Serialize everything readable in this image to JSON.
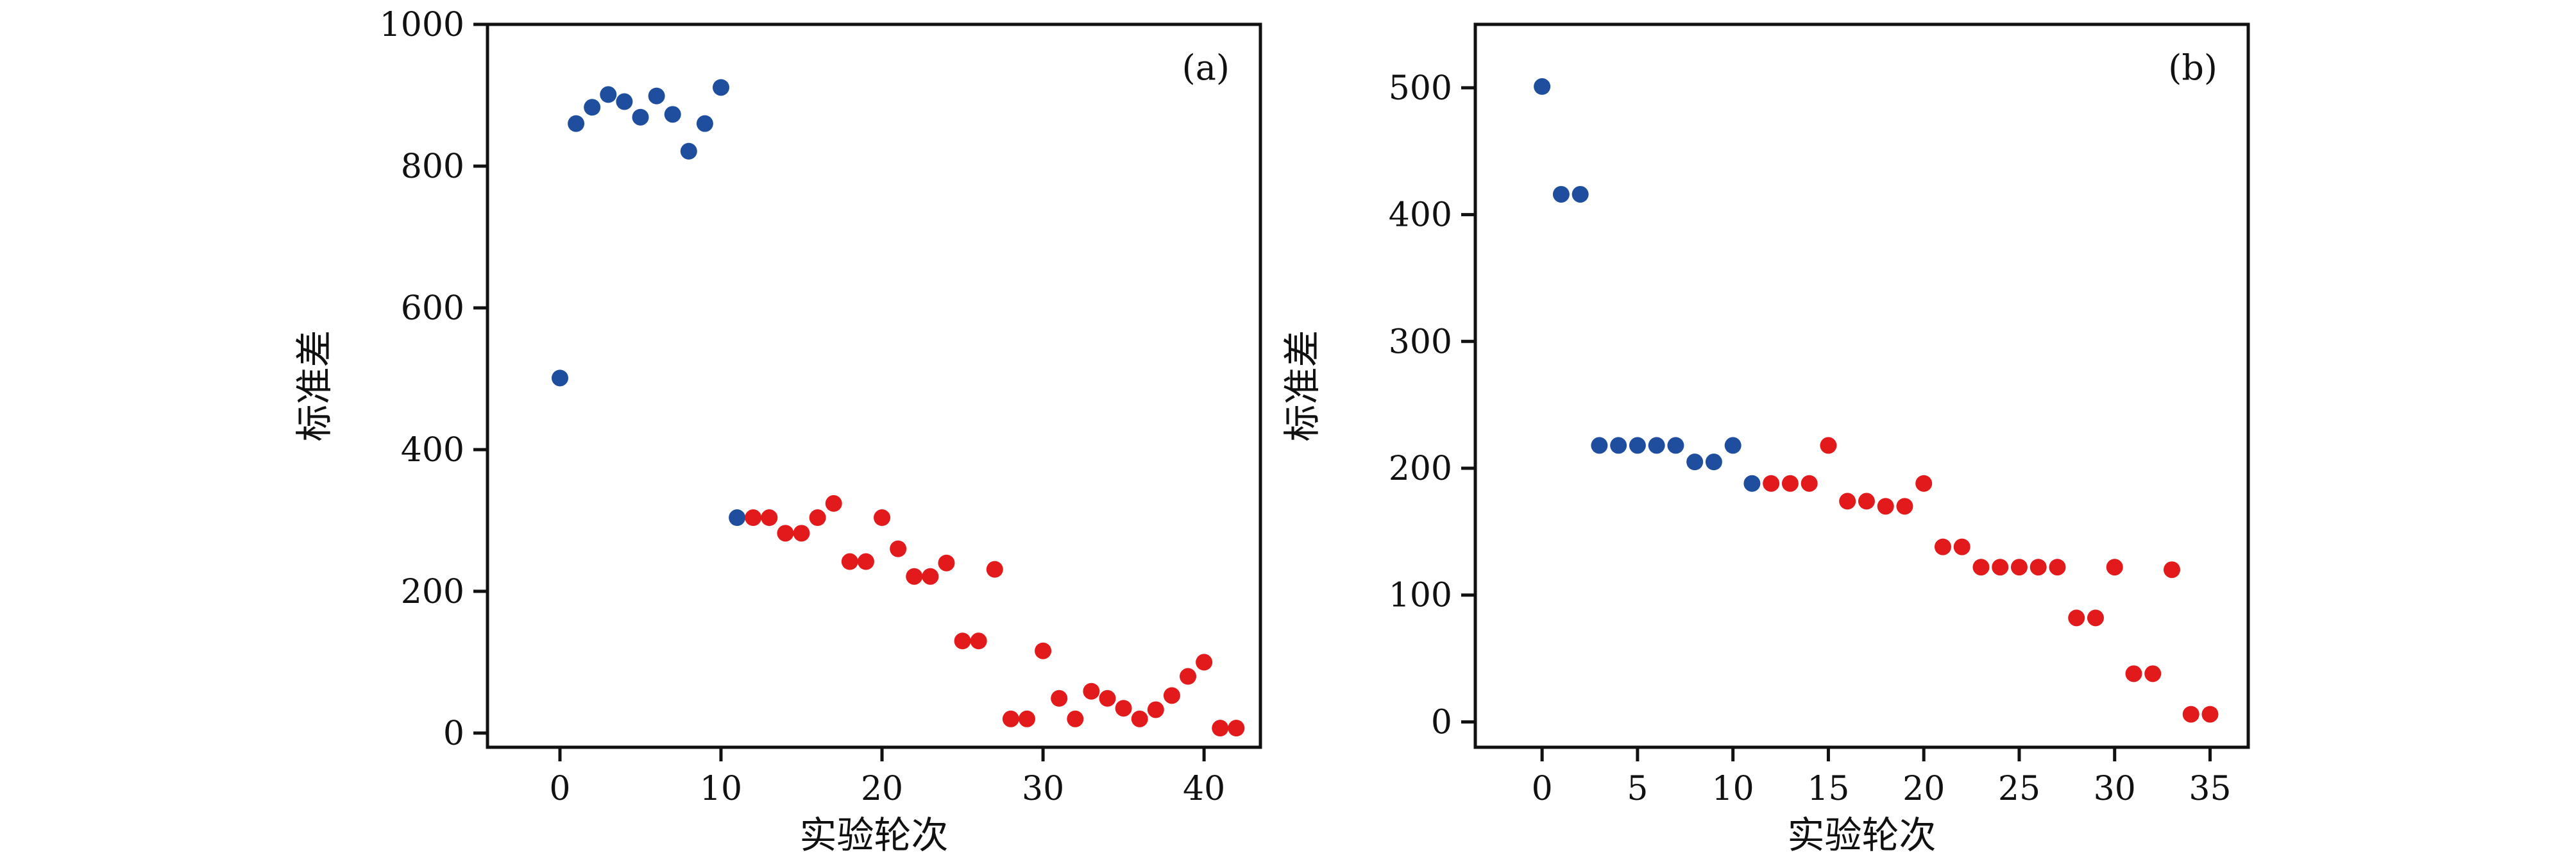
{
  "chart_data": [
    {
      "type": "scatter",
      "panel_label": "(a)",
      "xlabel": "实验轮次",
      "ylabel": "标准差",
      "xlim": [
        -4.5,
        43.5
      ],
      "ylim": [
        -20,
        1000
      ],
      "xticks": [
        0,
        10,
        20,
        30,
        40
      ],
      "yticks": [
        0,
        200,
        400,
        600,
        800,
        1000
      ],
      "grid": false,
      "legend": "none",
      "series": [
        {
          "color": "#1f4e9e",
          "x": [
            0,
            1,
            2,
            3,
            4,
            5,
            6,
            7,
            8,
            9,
            10,
            11
          ],
          "y": [
            501,
            860,
            883,
            901,
            891,
            869,
            899,
            873,
            821,
            860,
            911,
            304
          ]
        },
        {
          "color": "#e31a1c",
          "x": [
            12,
            13,
            14,
            15,
            16,
            17,
            18,
            19,
            20,
            21,
            22,
            23,
            24,
            25,
            26,
            27,
            28,
            29,
            30,
            31,
            32,
            33,
            34,
            35,
            36,
            37,
            38,
            39,
            40,
            41,
            42
          ],
          "y": [
            304,
            304,
            282,
            282,
            304,
            324,
            242,
            242,
            304,
            260,
            221,
            221,
            240,
            130,
            130,
            231,
            20,
            20,
            116,
            49,
            20,
            59,
            49,
            35,
            20,
            33,
            53,
            80,
            100,
            7,
            7
          ]
        }
      ]
    },
    {
      "type": "scatter",
      "panel_label": "(b)",
      "xlabel": "实验轮次",
      "ylabel": "标准差",
      "xlim": [
        -3.5,
        37
      ],
      "ylim": [
        -20,
        550
      ],
      "xticks": [
        0,
        5,
        10,
        15,
        20,
        25,
        30,
        35
      ],
      "yticks": [
        0,
        100,
        200,
        300,
        400,
        500
      ],
      "grid": false,
      "legend": "none",
      "series": [
        {
          "color": "#1f4e9e",
          "x": [
            0,
            1,
            2,
            3,
            4,
            5,
            6,
            7,
            8,
            9,
            10,
            11
          ],
          "y": [
            501,
            416,
            416,
            218,
            218,
            218,
            218,
            218,
            205,
            205,
            218,
            188
          ]
        },
        {
          "color": "#e31a1c",
          "x": [
            12,
            13,
            14,
            15,
            16,
            17,
            18,
            19,
            20,
            21,
            22,
            23,
            24,
            25,
            26,
            27,
            28,
            29,
            30,
            31,
            32,
            33,
            34,
            35
          ],
          "y": [
            188,
            188,
            188,
            218,
            174,
            174,
            170,
            170,
            188,
            138,
            138,
            122,
            122,
            122,
            122,
            122,
            82,
            82,
            122,
            38,
            38,
            120,
            6,
            6
          ]
        }
      ]
    }
  ]
}
